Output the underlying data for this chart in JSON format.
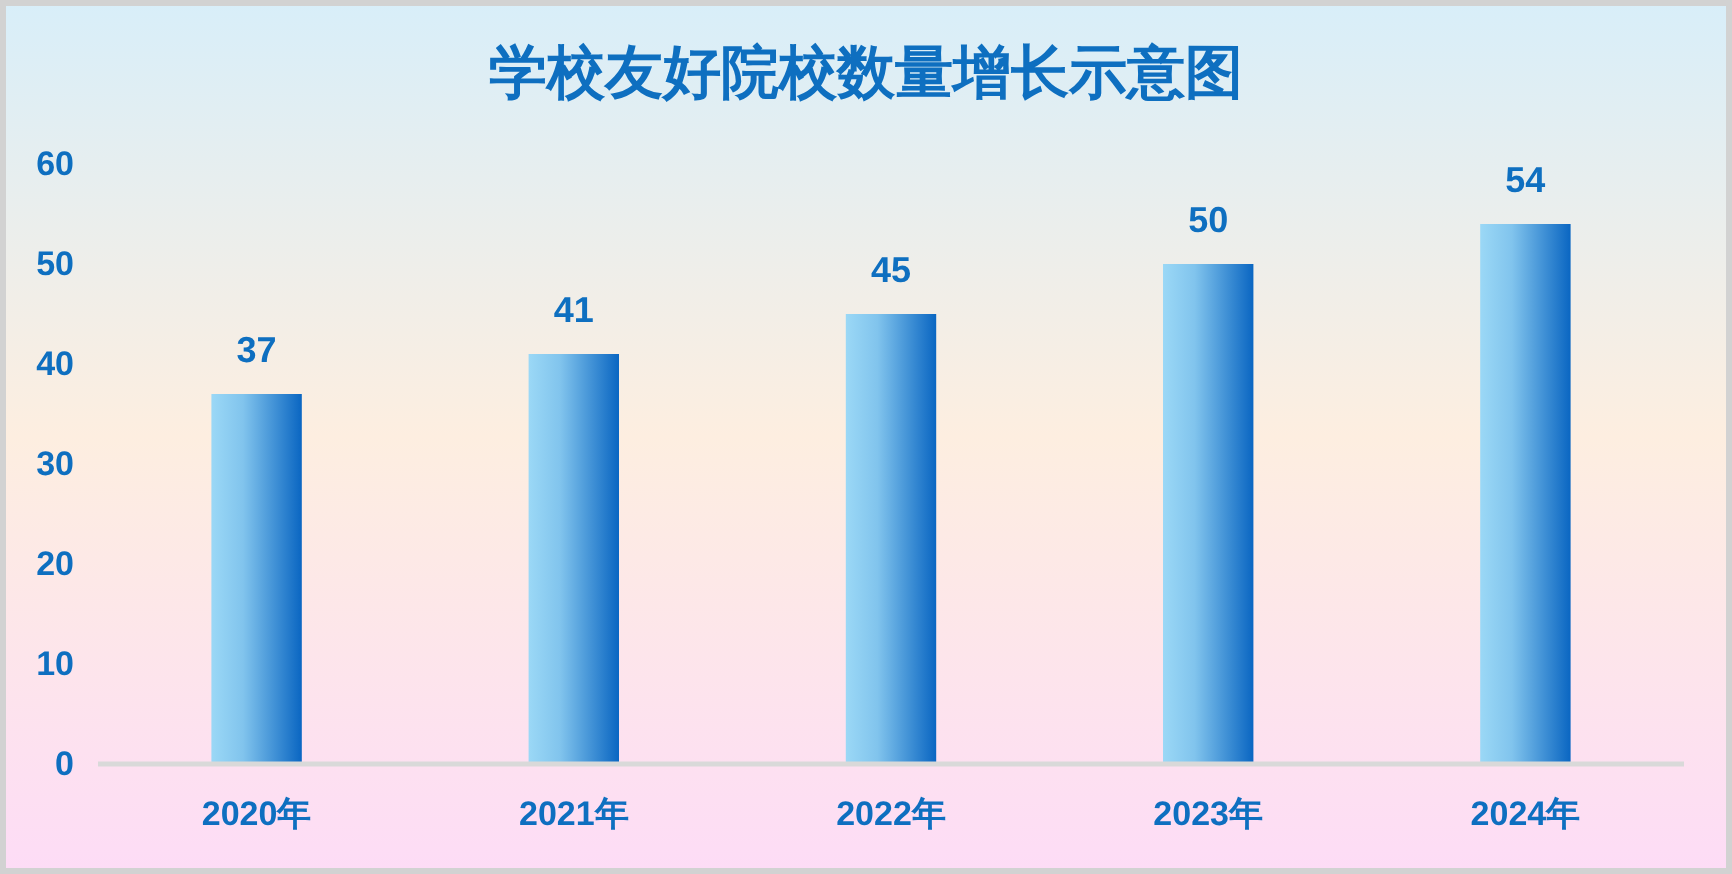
{
  "chart_data": {
    "type": "bar",
    "title": "学校友好院校数量增长示意图",
    "categories": [
      "2020年",
      "2021年",
      "2022年",
      "2023年",
      "2024年"
    ],
    "values": [
      37,
      41,
      45,
      50,
      54
    ],
    "color": "#0a66c2",
    "ylim": [
      0,
      60
    ],
    "yticks": [
      0,
      10,
      20,
      30,
      40,
      50,
      60
    ],
    "data_labels": true
  }
}
